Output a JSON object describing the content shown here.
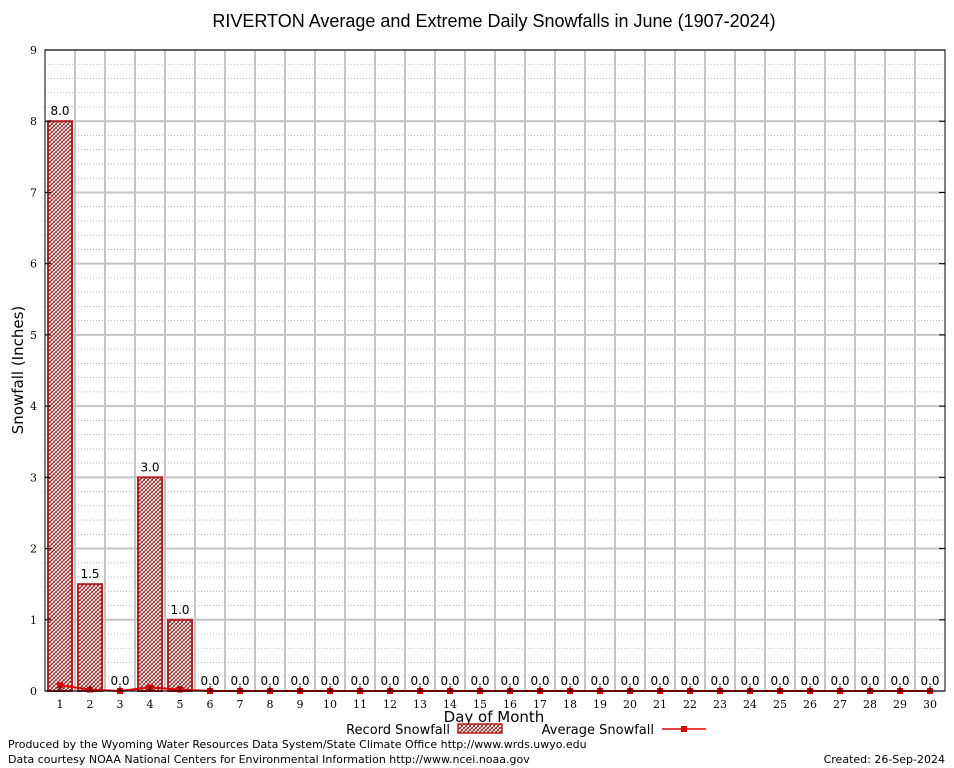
{
  "chart_data": {
    "type": "bar",
    "title": "RIVERTON Average and Extreme Daily Snowfalls in June (1907-2024)",
    "xlabel": "Day of Month",
    "ylabel": "Snowfall (Inches)",
    "ylim": [
      0,
      9
    ],
    "yticks": [
      "0",
      "1",
      "2",
      "3",
      "4",
      "5",
      "6",
      "7",
      "8",
      "9"
    ],
    "categories": [
      "1",
      "2",
      "3",
      "4",
      "5",
      "6",
      "7",
      "8",
      "9",
      "10",
      "11",
      "12",
      "13",
      "14",
      "15",
      "16",
      "17",
      "18",
      "19",
      "20",
      "21",
      "22",
      "23",
      "24",
      "25",
      "26",
      "27",
      "28",
      "29",
      "30"
    ],
    "series": [
      {
        "name": "Record Snowfall",
        "kind": "bar",
        "color": "#b22222",
        "values": [
          8.0,
          1.5,
          0.0,
          3.0,
          1.0,
          0,
          0,
          0,
          0,
          0,
          0,
          0,
          0,
          0,
          0,
          0,
          0,
          0,
          0,
          0,
          0,
          0,
          0,
          0,
          0,
          0,
          0,
          0,
          0,
          0
        ],
        "labels": [
          "8.0",
          "1.5",
          "0.0",
          "3.0",
          "1.0",
          "0.0",
          "0.0",
          "0.0",
          "0.0",
          "0.0",
          "0.0",
          "0.0",
          "0.0",
          "0.0",
          "0.0",
          "0.0",
          "0.0",
          "0.0",
          "0.0",
          "0.0",
          "0.0",
          "0.0",
          "0.0",
          "0.0",
          "0.0",
          "0.0",
          "0.0",
          "0.0",
          "0.0",
          "0.0"
        ]
      },
      {
        "name": "Average Snowfall",
        "kind": "line",
        "color": "#dd0000",
        "values": [
          0.08,
          0.02,
          0.0,
          0.05,
          0.02,
          0,
          0,
          0,
          0,
          0,
          0,
          0,
          0,
          0,
          0,
          0,
          0,
          0,
          0,
          0,
          0,
          0,
          0,
          0,
          0,
          0,
          0,
          0,
          0,
          0
        ]
      }
    ],
    "legend": {
      "record_label": "Record Snowfall",
      "average_label": "Average Snowfall",
      "placement": "bottom-center"
    },
    "grid": true
  },
  "footer": {
    "produced_by": "Produced by the Wyoming Water Resources Data System/State Climate Office http://www.wrds.uwyo.edu",
    "data_courtesy": "Data courtesy NOAA National Centers for Environmental Information http://www.ncei.noaa.gov",
    "created": "Created:  26-Sep-2024"
  }
}
